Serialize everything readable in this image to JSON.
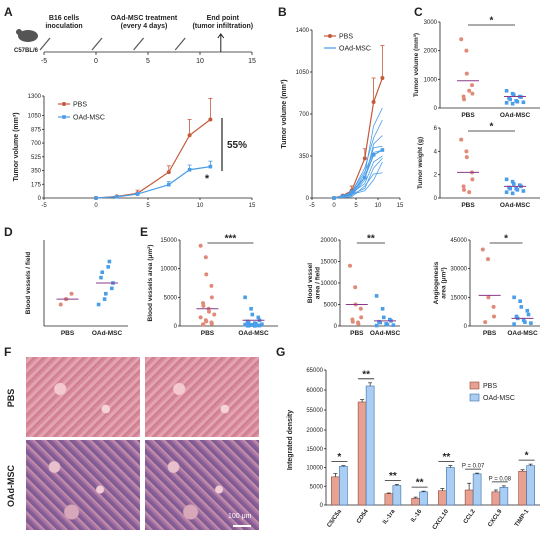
{
  "panel_letters": {
    "A": "A",
    "B": "B",
    "C": "C",
    "D": "D",
    "E": "E",
    "F": "F",
    "G": "G"
  },
  "colors": {
    "pbs": "#c55a3a",
    "oad": "#4a9de8",
    "pbs_bar": "#e8a090",
    "oad_bar": "#a9cdf3",
    "mouse": "#555555",
    "purple": "#8a3a8a"
  },
  "timeline": {
    "mouse_label": "C57BL/6",
    "event1": "B16 cells\ninoculation",
    "event2": "OAd-MSC  treatment\n(every 4 days)",
    "event3": "End point\n(tumor infiltration)",
    "ticks": [
      "-5",
      "0",
      "5",
      "10",
      "15"
    ]
  },
  "chart_data": [
    {
      "id": "A",
      "type": "line",
      "ylabel": "Tumor volume (mm³)",
      "xlim": [
        -5,
        15
      ],
      "ylim": [
        0,
        1300
      ],
      "xticks": [
        "-5",
        "0",
        "5",
        "10",
        "15"
      ],
      "yticks": [
        "0",
        "175",
        "350",
        "525",
        "700",
        "875",
        "1050",
        "1300"
      ],
      "legend": [
        "PBS",
        "OAd-MSC"
      ],
      "series": [
        {
          "name": "PBS",
          "x": [
            0,
            2,
            4,
            7,
            9,
            11
          ],
          "y": [
            0,
            20,
            60,
            330,
            800,
            1000
          ],
          "err": [
            0,
            10,
            40,
            80,
            200,
            270
          ]
        },
        {
          "name": "OAd-MSC",
          "x": [
            0,
            2,
            4,
            7,
            9,
            11
          ],
          "y": [
            0,
            15,
            50,
            170,
            360,
            400
          ],
          "err": [
            0,
            8,
            20,
            40,
            60,
            70
          ]
        }
      ],
      "annotations": [
        "55%",
        "*"
      ]
    },
    {
      "id": "B",
      "type": "line",
      "ylabel": "Tumor volume (mm³)",
      "xlim": [
        -5,
        15
      ],
      "ylim": [
        0,
        1400
      ],
      "xticks": [
        "-5",
        "0",
        "5",
        "10",
        "15"
      ],
      "yticks": [
        "0",
        "350",
        "700",
        "1050",
        "1400"
      ],
      "legend": [
        "PBS",
        "OAd-MSC"
      ],
      "series": [
        {
          "name": "PBS",
          "x": [
            0,
            2,
            4,
            7,
            9,
            11
          ],
          "y": [
            0,
            20,
            60,
            330,
            800,
            1000
          ],
          "err": [
            0,
            10,
            40,
            80,
            200,
            270
          ]
        },
        {
          "name": "OAd-MSC",
          "x": [
            0,
            2,
            4,
            7,
            9,
            11
          ],
          "y": [
            0,
            15,
            50,
            170,
            360,
            400
          ]
        }
      ],
      "individual_oad": [
        [
          0,
          10,
          30,
          200,
          600,
          750
        ],
        [
          0,
          10,
          20,
          150,
          450,
          520
        ],
        [
          0,
          5,
          40,
          120,
          300,
          350
        ],
        [
          0,
          20,
          50,
          220,
          380,
          400
        ],
        [
          0,
          15,
          30,
          80,
          250,
          330
        ],
        [
          0,
          5,
          10,
          100,
          200,
          210
        ],
        [
          0,
          10,
          25,
          170,
          420,
          430
        ],
        [
          0,
          5,
          30,
          60,
          150,
          300
        ],
        [
          0,
          10,
          45,
          250,
          500,
          650
        ]
      ]
    },
    {
      "id": "C-volume",
      "type": "scatter",
      "ylabel": "Tumor volume (mm³)",
      "categories": [
        "PBS",
        "OAd-MSC"
      ],
      "ylim": [
        0,
        3000
      ],
      "yticks": [
        "0",
        "1000",
        "2000",
        "3000"
      ],
      "points": [
        [
          2400,
          2000,
          1200,
          800,
          500,
          400,
          300,
          600
        ],
        [
          600,
          500,
          450,
          400,
          380,
          350,
          300,
          250,
          220,
          200,
          180,
          150
        ]
      ],
      "means": [
        950,
        400
      ],
      "significance": "*"
    },
    {
      "id": "C-weight",
      "type": "scatter",
      "ylabel": "Tumor weight (g)",
      "categories": [
        "PBS",
        "OAd-MSC"
      ],
      "ylim": [
        0,
        6
      ],
      "yticks": [
        "0",
        "2",
        "4",
        "6"
      ],
      "points": [
        [
          5,
          4,
          3.5,
          2.2,
          1.6,
          1,
          0.7,
          0.5
        ],
        [
          1.6,
          1.4,
          1.2,
          1.1,
          1,
          0.9,
          0.8,
          0.8,
          0.7,
          0.6,
          0.5,
          0.4
        ]
      ],
      "means": [
        2.2,
        1
      ],
      "significance": "*"
    },
    {
      "id": "D",
      "type": "scatter",
      "ylabel": "Blood vessels / field",
      "categories": [
        "PBS",
        "OAd-MSC"
      ],
      "ylim": [
        0,
        16
      ],
      "points": [
        [
          4,
          5,
          5,
          6
        ],
        [
          4,
          5,
          6,
          7,
          8,
          9,
          10,
          11,
          12
        ]
      ],
      "means": [
        5,
        8
      ]
    },
    {
      "id": "E1",
      "type": "scatter",
      "ylabel": "Blood vessels area (μm²)",
      "categories": [
        "PBS",
        "OAd-MSC"
      ],
      "ylim": [
        0,
        15000
      ],
      "yticks": [
        "0",
        "5000",
        "10000",
        "15000"
      ],
      "points": [
        [
          14000,
          12000,
          9000,
          7000,
          5000,
          4000,
          3500,
          3000,
          2500,
          2000,
          1500,
          1000,
          800,
          600,
          400,
          300,
          200
        ],
        [
          5000,
          3000,
          2000,
          1500,
          1000,
          800,
          600,
          500,
          400,
          300,
          250,
          200,
          150,
          100,
          80,
          60,
          40,
          20
        ]
      ],
      "means": [
        3000,
        1000
      ],
      "significance": "***"
    },
    {
      "id": "E2",
      "type": "scatter",
      "ylabel": "Blood vessel\narea / field",
      "categories": [
        "PBS",
        "OAd-MSC"
      ],
      "ylim": [
        0,
        20000
      ],
      "yticks": [
        "0",
        "5000",
        "10000",
        "15000",
        "20000"
      ],
      "points": [
        [
          14000,
          9000,
          5000,
          4000,
          2000,
          1500,
          1000,
          800,
          500
        ],
        [
          7000,
          4000,
          2000,
          1500,
          1200,
          1000,
          800,
          500,
          300,
          200,
          100
        ]
      ],
      "means": [
        5000,
        1200
      ],
      "significance": "**"
    },
    {
      "id": "E3",
      "type": "scatter",
      "ylabel": "Angiogenesis\narea (μm²)",
      "categories": [
        "PBS",
        "OAd-MSC"
      ],
      "ylim": [
        0,
        45000
      ],
      "yticks": [
        "0",
        "15000",
        "30000",
        "45000"
      ],
      "points": [
        [
          40000,
          35000,
          15000,
          10000,
          5000,
          2000
        ],
        [
          15000,
          13000,
          10000,
          8000,
          6000,
          5000,
          4000,
          3000,
          2000,
          1500,
          1000
        ]
      ],
      "means": [
        16000,
        4000
      ],
      "significance": "*"
    },
    {
      "id": "G",
      "type": "bar",
      "ylabel": "Integrated density",
      "categories": [
        "C5/C5a",
        "CD54",
        "IL-1ra",
        "IL-16",
        "CXCL10",
        "CCL2",
        "CXCL9",
        "TIMP-1"
      ],
      "yticks": [
        "0",
        "5000",
        "10000",
        "15000",
        "20000",
        "55000",
        "60000",
        "65000"
      ],
      "legend": [
        "PBS",
        "OAd-MSC"
      ],
      "series": [
        {
          "name": "PBS",
          "values": [
            7500,
            57000,
            3000,
            1800,
            3800,
            4000,
            3500,
            9000
          ],
          "err": [
            900,
            600,
            200,
            300,
            600,
            1800,
            500,
            400
          ]
        },
        {
          "name": "OAd-MSC",
          "values": [
            10300,
            61000,
            5200,
            3500,
            10000,
            8300,
            4700,
            10500
          ],
          "err": [
            200,
            800,
            300,
            200,
            500,
            200,
            400,
            400
          ]
        }
      ],
      "annotations": [
        "*",
        "**",
        "**",
        "**",
        "**",
        "P = 0.07",
        "P = 0.08",
        "*"
      ]
    }
  ],
  "panelF": {
    "row_labels": [
      "PBS",
      "OAd-MSC"
    ],
    "scale": "100 μm"
  }
}
